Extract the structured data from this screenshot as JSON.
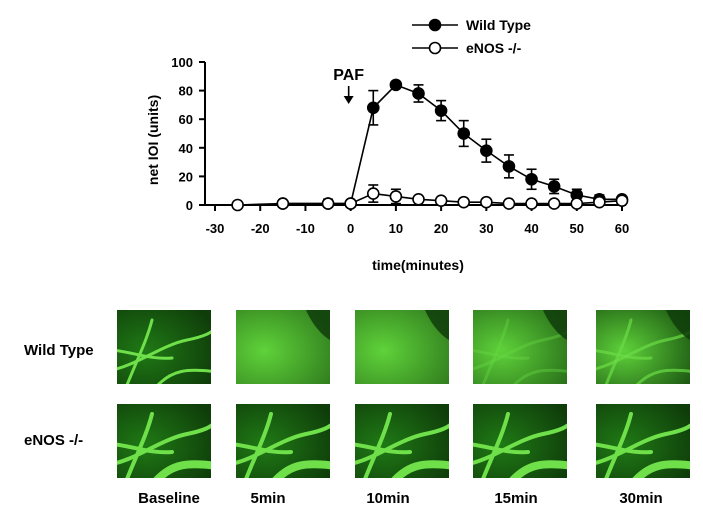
{
  "chart_data": {
    "type": "line",
    "title": "",
    "xlabel": "time(minutes)",
    "ylabel": "net IOI (units)",
    "xlim": [
      -30,
      60
    ],
    "ylim": [
      0,
      100
    ],
    "xticks": [
      -30,
      -20,
      -10,
      0,
      10,
      20,
      30,
      40,
      50,
      60
    ],
    "yticks": [
      0,
      20,
      40,
      60,
      80,
      100
    ],
    "grid": false,
    "legend": "top-right",
    "annotation": {
      "text": "PAF",
      "x": 0
    },
    "series": [
      {
        "name": "Wild Type",
        "marker": "filled-circle",
        "color": "#000000",
        "points": [
          {
            "x": -15,
            "y": 1,
            "err": 1
          },
          {
            "x": -5,
            "y": 1,
            "err": 3
          },
          {
            "x": 0,
            "y": 1,
            "err": 2
          },
          {
            "x": 5,
            "y": 68,
            "err": 12
          },
          {
            "x": 10,
            "y": 84,
            "err": 2
          },
          {
            "x": 15,
            "y": 78,
            "err": 6
          },
          {
            "x": 20,
            "y": 66,
            "err": 7
          },
          {
            "x": 25,
            "y": 50,
            "err": 9
          },
          {
            "x": 30,
            "y": 38,
            "err": 8
          },
          {
            "x": 35,
            "y": 27,
            "err": 8
          },
          {
            "x": 40,
            "y": 18,
            "err": 7
          },
          {
            "x": 45,
            "y": 13,
            "err": 5
          },
          {
            "x": 50,
            "y": 7,
            "err": 4
          },
          {
            "x": 55,
            "y": 4,
            "err": 3
          },
          {
            "x": 60,
            "y": 4,
            "err": 2
          }
        ]
      },
      {
        "name": "eNOS -/-",
        "marker": "open-circle",
        "color": "#000000",
        "points": [
          {
            "x": -25,
            "y": 0,
            "err": 0
          },
          {
            "x": -15,
            "y": 1,
            "err": 1
          },
          {
            "x": -5,
            "y": 1,
            "err": 2
          },
          {
            "x": 0,
            "y": 1,
            "err": 2
          },
          {
            "x": 5,
            "y": 8,
            "err": 6
          },
          {
            "x": 10,
            "y": 6,
            "err": 5
          },
          {
            "x": 15,
            "y": 4,
            "err": 2
          },
          {
            "x": 20,
            "y": 3,
            "err": 2
          },
          {
            "x": 25,
            "y": 2,
            "err": 1
          },
          {
            "x": 30,
            "y": 2,
            "err": 1
          },
          {
            "x": 35,
            "y": 1,
            "err": 1
          },
          {
            "x": 40,
            "y": 1,
            "err": 1
          },
          {
            "x": 45,
            "y": 1,
            "err": 1
          },
          {
            "x": 50,
            "y": 1,
            "err": 1
          },
          {
            "x": 55,
            "y": 2,
            "err": 1
          },
          {
            "x": 60,
            "y": 3,
            "err": 1
          }
        ]
      }
    ]
  },
  "image_grid": {
    "rows": [
      {
        "label": "Wild Type",
        "key": "wild-type"
      },
      {
        "label": "eNOS -/-",
        "key": "enos-ko"
      }
    ],
    "columns": [
      {
        "label": "Baseline",
        "key": "baseline"
      },
      {
        "label": "5min",
        "key": "5min"
      },
      {
        "label": "10min",
        "key": "10min"
      },
      {
        "label": "15min",
        "key": "15min"
      },
      {
        "label": "30min",
        "key": "30min"
      }
    ],
    "colors": {
      "vessel": "#6fe04a",
      "background_dark": "#0f3d0a",
      "background_mid": "#1f7a15",
      "leak_bright": "#5fd23a"
    }
  }
}
